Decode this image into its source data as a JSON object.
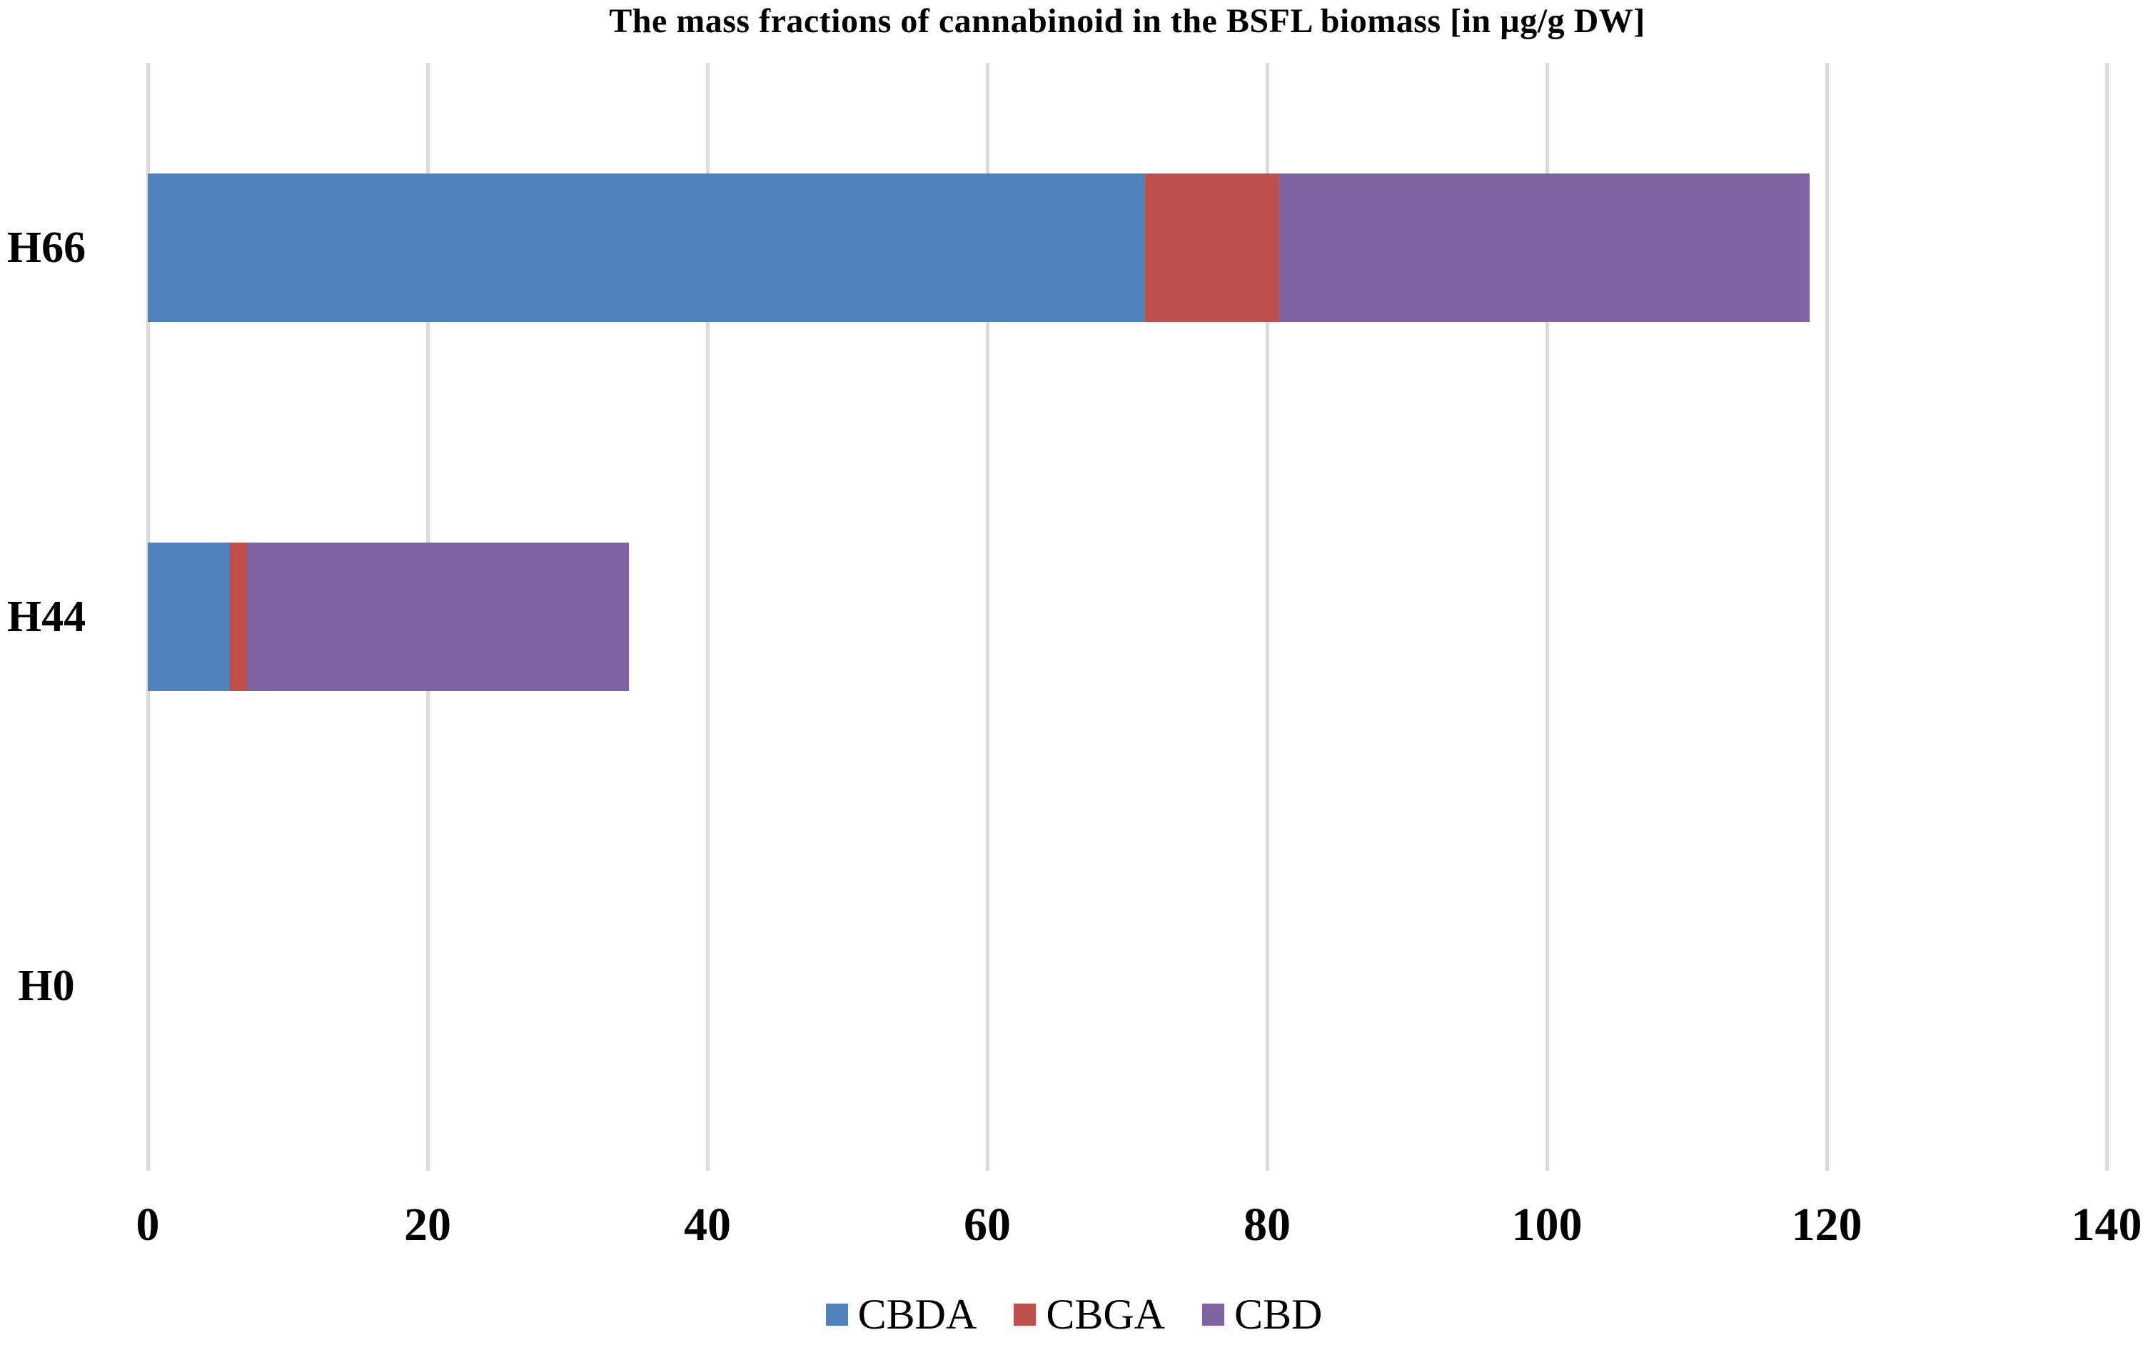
{
  "title": "The mass fractions of cannabinoid in the BSFL biomass [in µg/g DW]",
  "chart_data": {
    "type": "bar",
    "orientation": "horizontal",
    "stacked": true,
    "title": "The mass fractions of cannabinoid in the BSFL biomass [in µg/g DW]",
    "categories": [
      "H66",
      "H44",
      "H0"
    ],
    "series": [
      {
        "name": "CBDA",
        "color": "#4F81BD",
        "values": [
          71.3,
          5.8,
          0
        ]
      },
      {
        "name": "CBGA",
        "color": "#C0504D",
        "values": [
          9.5,
          1.3,
          0
        ]
      },
      {
        "name": "CBD",
        "color": "#8064A2",
        "values": [
          38.0,
          27.3,
          0
        ]
      }
    ],
    "totals": [
      118.8,
      34.4,
      0
    ],
    "xlim": [
      0,
      140
    ],
    "xticks": [
      0,
      20,
      40,
      60,
      80,
      100,
      120,
      140
    ],
    "xlabel": "",
    "ylabel": "",
    "grid": "vertical",
    "legend_position": "bottom",
    "legend_labels": [
      "CBDA",
      "CBGA",
      "CBD"
    ]
  },
  "colors": {
    "background": "#FFFFFF",
    "gridline": "#DBDBDB",
    "text": "#000000",
    "cbda": "#4F81BD",
    "cbga": "#C0504D",
    "cbd": "#8064A2"
  }
}
